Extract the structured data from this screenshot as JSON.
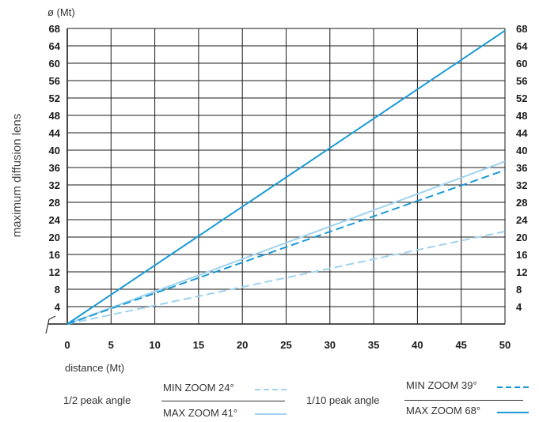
{
  "chart_data": {
    "type": "line",
    "xlabel": "distance (Mt)",
    "ylabel": "maximum diffusion lens",
    "yunit": "ø (Mt)",
    "xlim": [
      0,
      50
    ],
    "ylim": [
      0,
      70
    ],
    "xticks": [
      0,
      5,
      10,
      15,
      20,
      25,
      30,
      35,
      40,
      45,
      50
    ],
    "yticks": [
      4,
      8,
      12,
      16,
      20,
      24,
      28,
      32,
      36,
      40,
      44,
      48,
      52,
      56,
      60,
      64,
      68
    ],
    "grid": true,
    "series": [
      {
        "name": "MIN ZOOM 24°",
        "group": "1/2 peak angle",
        "x": [
          0,
          50
        ],
        "y": [
          0,
          21.3
        ],
        "color": "#9fd3ee",
        "dash": "dashed"
      },
      {
        "name": "MAX ZOOM 41°",
        "group": "1/2 peak angle",
        "x": [
          0,
          50
        ],
        "y": [
          0,
          37.4
        ],
        "color": "#9fd3ee",
        "dash": "solid"
      },
      {
        "name": "MIN ZOOM 39°",
        "group": "1/10 peak angle",
        "x": [
          0,
          50
        ],
        "y": [
          0,
          35.4
        ],
        "color": "#1a9ad6",
        "dash": "dashed"
      },
      {
        "name": "MAX ZOOM 68°",
        "group": "1/10 peak angle",
        "x": [
          0,
          50
        ],
        "y": [
          0,
          67.5
        ],
        "color": "#1a9ad6",
        "dash": "solid"
      }
    ]
  },
  "legend": {
    "groups": [
      {
        "title": "1/2 peak angle",
        "entries": [
          "MIN ZOOM 24°",
          "MAX ZOOM 41°"
        ]
      },
      {
        "title": "1/10 peak angle",
        "entries": [
          "MIN ZOOM 39°",
          "MAX ZOOM 68°"
        ]
      }
    ]
  }
}
